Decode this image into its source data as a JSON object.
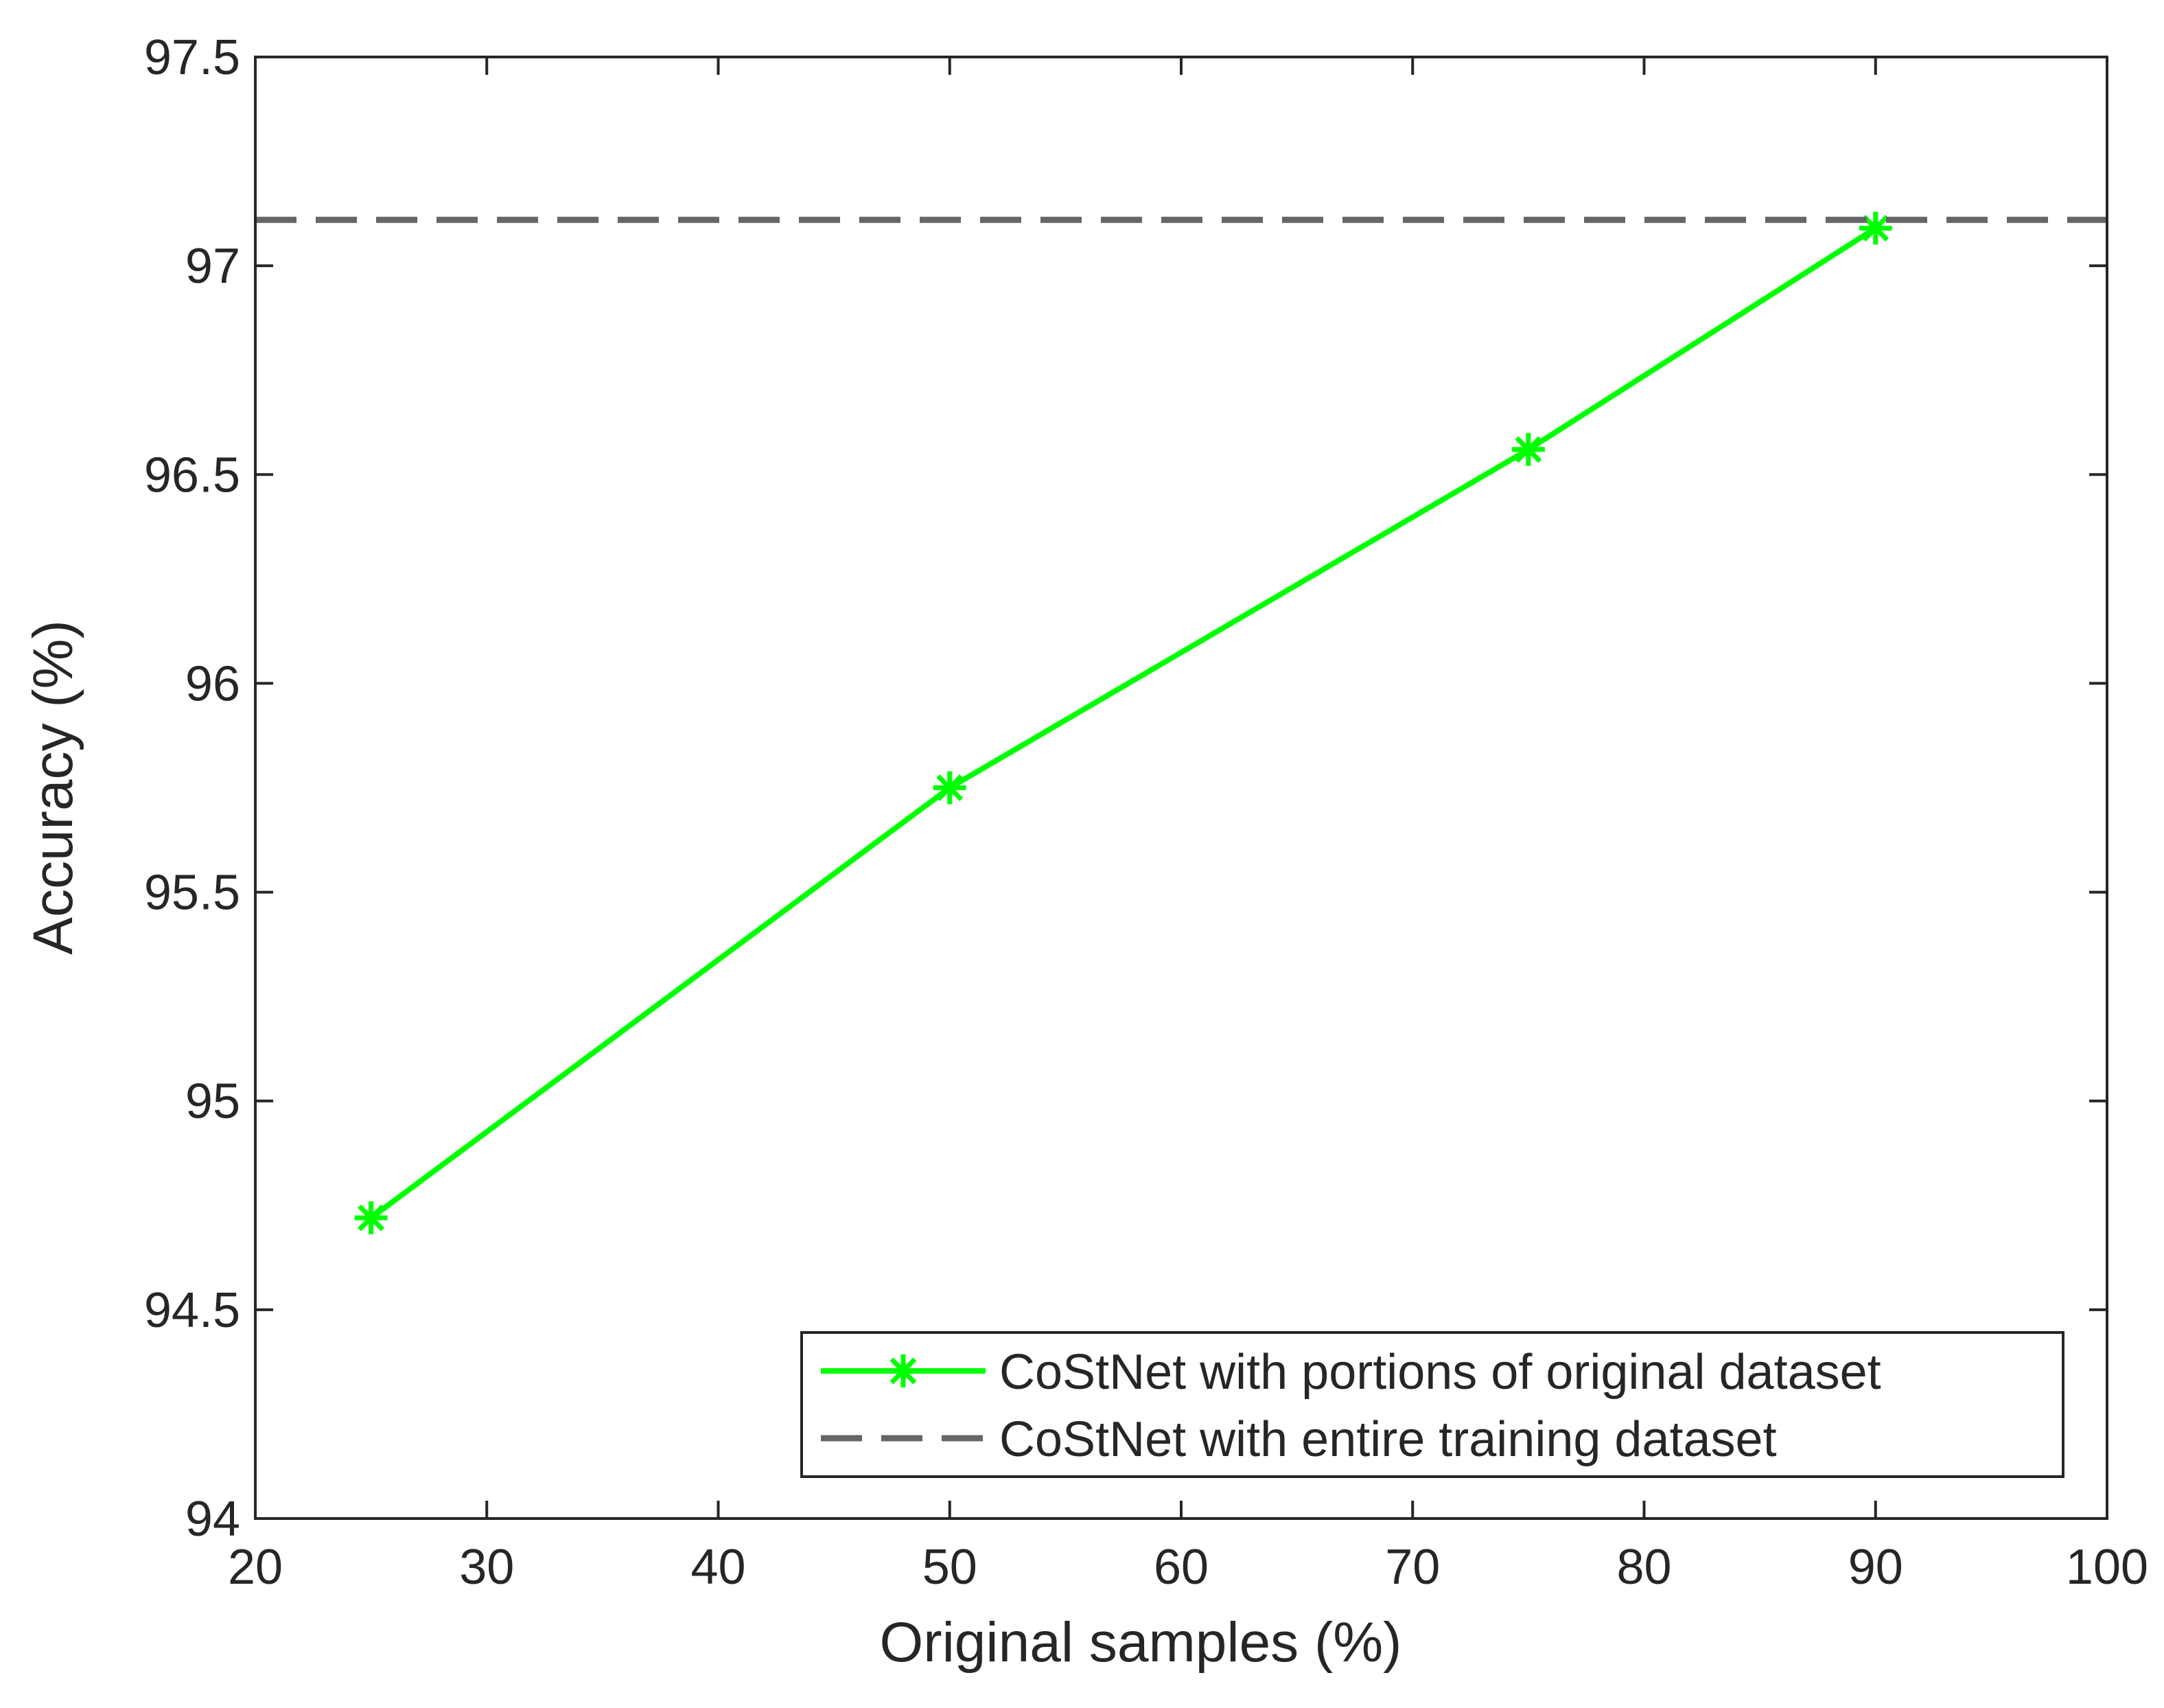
{
  "chart_data": {
    "type": "line",
    "xlabel": "Original samples (%)",
    "ylabel": "Accuracy (%)",
    "xlim": [
      20,
      100
    ],
    "xticks": [
      20,
      30,
      40,
      50,
      60,
      70,
      80,
      90,
      100
    ],
    "ylim": [
      94,
      97.5
    ],
    "yticks": [
      94,
      {
        "value": 94.5,
        "label": "94.5"
      },
      95,
      {
        "value": 95.5,
        "label": "95.5"
      },
      96,
      {
        "value": 96.5,
        "label": "96.5"
      },
      97,
      {
        "value": 97.5,
        "label": "97.5"
      }
    ],
    "grid": false,
    "legend": "lower right",
    "series": [
      {
        "name": "CoStNet with portions of original dataset",
        "color": "#00ff00",
        "style": "solid",
        "marker": "asterisk",
        "x": [
          25,
          50,
          75,
          90
        ],
        "values": [
          94.72,
          95.75,
          96.56,
          97.09
        ]
      },
      {
        "name": "CoStNet with entire training dataset",
        "color": "#666666",
        "style": "dashed",
        "x": [
          20,
          100
        ],
        "values": [
          97.11,
          97.11
        ]
      }
    ]
  }
}
